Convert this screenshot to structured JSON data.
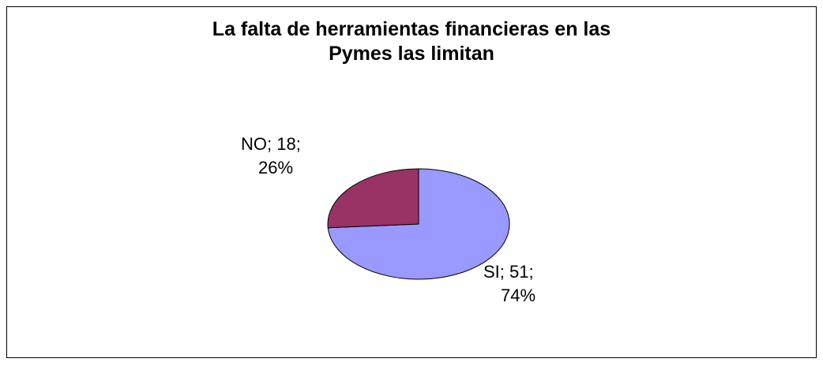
{
  "chart_data": {
    "type": "pie",
    "title": "La falta de herramientas financieras en las\nPymes las limitan",
    "categories": [
      "SI",
      "NO"
    ],
    "values": [
      51,
      18
    ],
    "value_labels": [
      [
        "SI; 51;",
        "74%"
      ],
      [
        "NO; 18;",
        "26%"
      ]
    ],
    "colors": [
      "#9999ff",
      "#993366"
    ]
  }
}
